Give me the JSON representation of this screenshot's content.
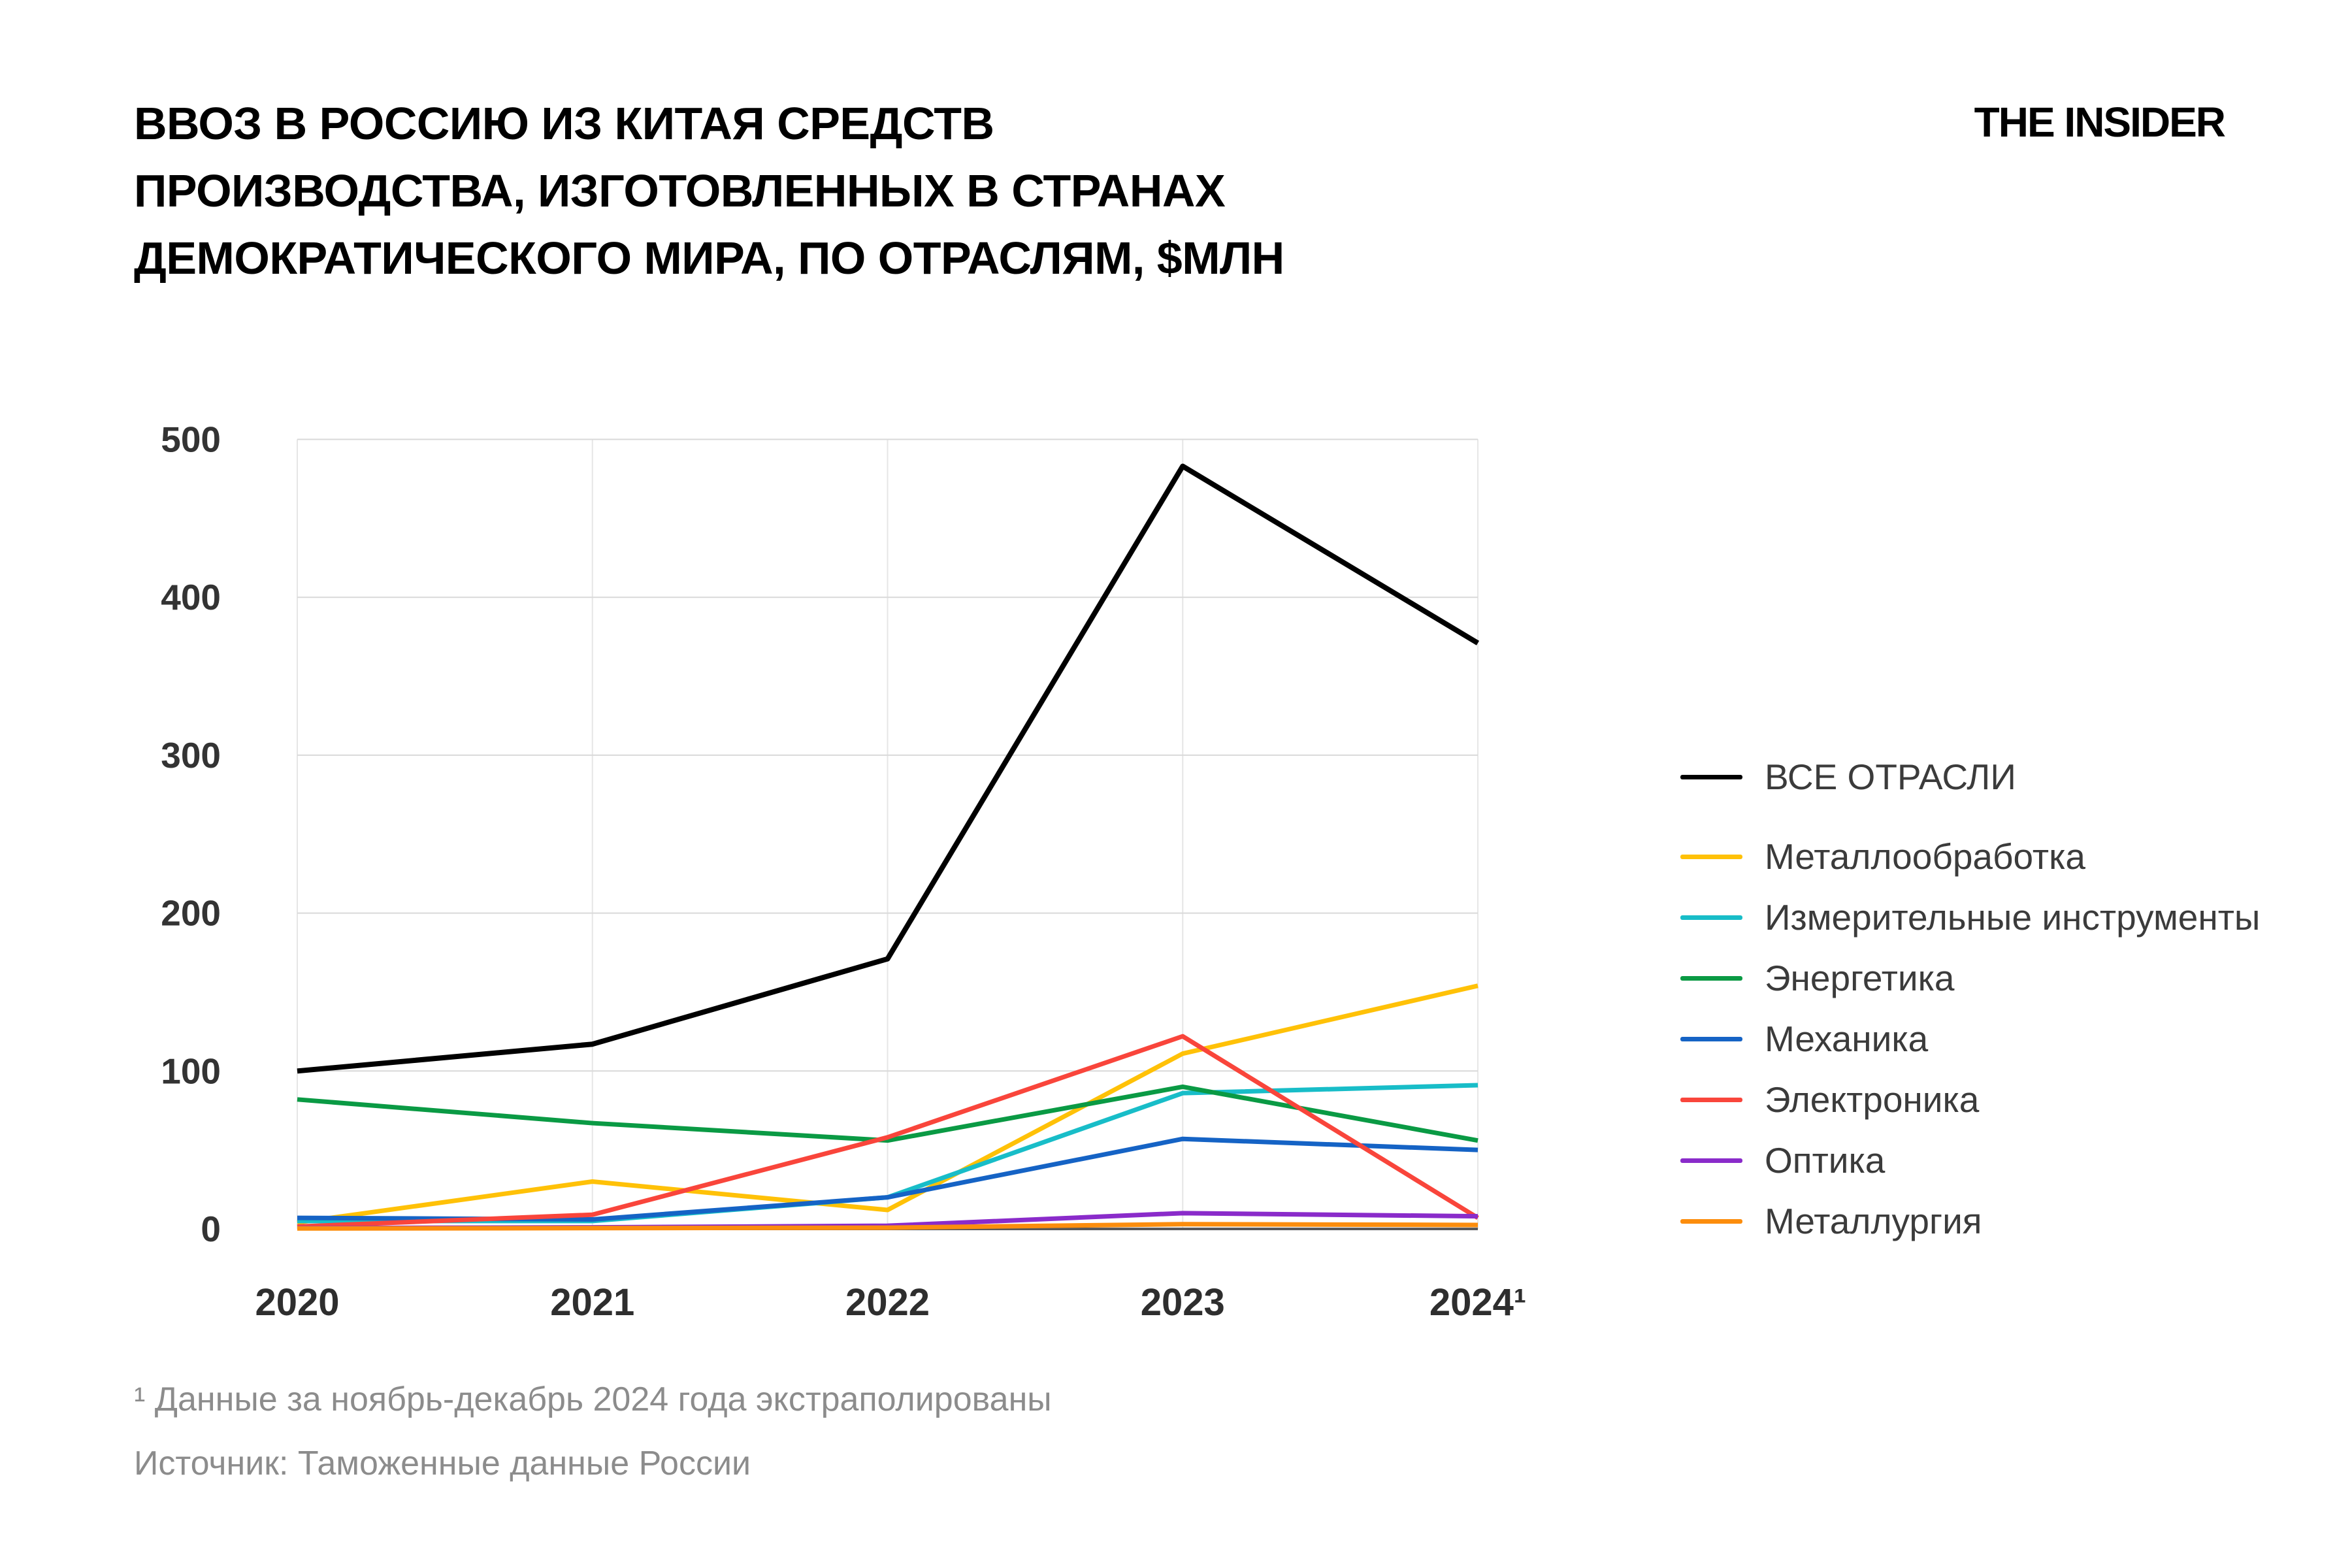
{
  "title": "ВВОЗ В РОССИЮ ИЗ КИТАЯ СРЕДСТВ\nПРОИЗВОДСТВА, ИЗГОТОВЛЕННЫХ В СТРАНАХ\nДЕМОКРАТИЧЕСКОГО МИРА, ПО ОТРАСЛЯМ, $МЛН",
  "logo": "THE INSIDER",
  "footnotes": [
    "¹ Данные за ноябрь-декабрь 2024 года экстраполированы",
    "Источник: Таможенные данные России"
  ],
  "chart_data": {
    "type": "line",
    "title": "Ввоз в Россию из Китая средств производства, изготовленных в странах демократического мира, по отраслям, $млн",
    "categories": [
      "2020",
      "2021",
      "2022",
      "2023",
      "2024¹"
    ],
    "xlabel": "",
    "ylabel": "$млн",
    "ylim": [
      0,
      500
    ],
    "yticks": [
      0,
      100,
      200,
      300,
      400,
      500
    ],
    "grid": true,
    "legend_position": "right",
    "series": [
      {
        "key": "all-industries",
        "name": "ВСЕ ОТРАСЛИ",
        "color": "#000000",
        "values": [
          100,
          117,
          171,
          483,
          371
        ]
      },
      {
        "key": "metalworking",
        "name": "Металлообработка",
        "color": "#ffc107",
        "values": [
          4,
          30,
          12,
          111,
          154
        ]
      },
      {
        "key": "measuring-instruments",
        "name": "Измерительные инструменты",
        "color": "#18bdc8",
        "values": [
          5,
          5,
          20,
          86,
          91
        ]
      },
      {
        "key": "energy",
        "name": "Энергетика",
        "color": "#0a9a44",
        "values": [
          82,
          67,
          56,
          90,
          56
        ]
      },
      {
        "key": "mechanics",
        "name": "Механика",
        "color": "#1563c5",
        "values": [
          7,
          6,
          20,
          57,
          50
        ]
      },
      {
        "key": "electronics",
        "name": "Электроника",
        "color": "#f9453b",
        "values": [
          1.5,
          9,
          58,
          122,
          7
        ]
      },
      {
        "key": "optics",
        "name": "Оптика",
        "color": "#8a2bca",
        "values": [
          0.5,
          1,
          2,
          10,
          8
        ]
      },
      {
        "key": "metallurgy",
        "name": "Металлургия",
        "color": "#fc8d0d",
        "values": [
          0.3,
          0.5,
          0.8,
          3,
          2.5
        ]
      }
    ]
  },
  "colors": {
    "grid_horizontal": "#d9d9d9",
    "grid_vertical": "#e6e6e6",
    "zero_line": "#58585a",
    "tick_label": "#333333",
    "x_label": "#2e2e2e",
    "legend_label": "#3b3b3b",
    "footnote": "#8c8c8c"
  }
}
